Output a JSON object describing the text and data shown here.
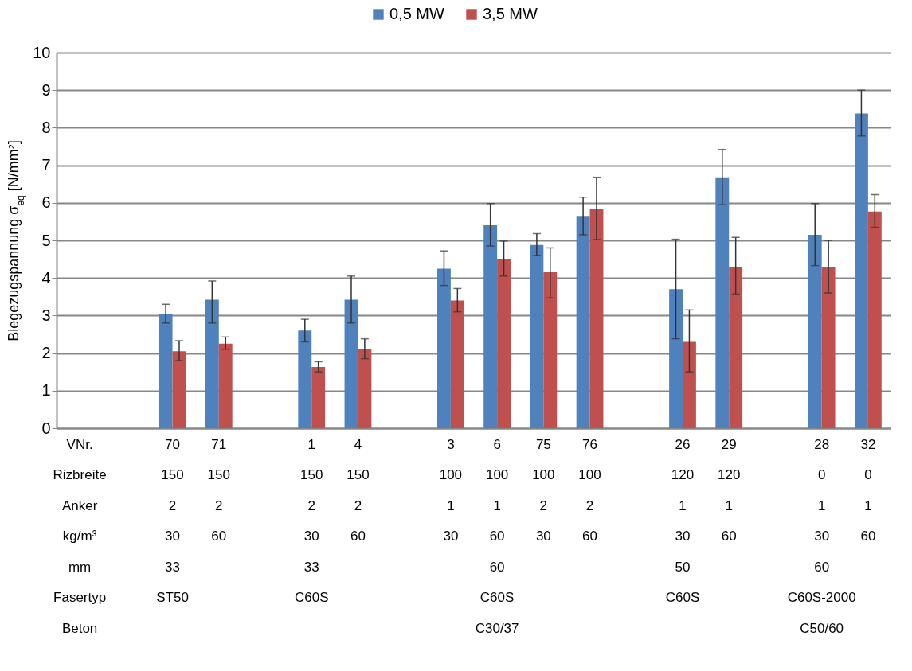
{
  "chart_data": {
    "type": "bar",
    "ylabel": "Biegezugspannung σ$_{eq}$ [N/mm²]",
    "categories": [
      "VNr.\nRizbreite\nAnker\nkg/m³\nmm\nFasertyp\nBeton",
      null,
      "70\n150\n2\n30\n33\nST50",
      "71\n150\n2\n60",
      null,
      "1\n150\n2\n30\n33\nC60S",
      "4\n150\n2\n60",
      null,
      "3\n100\n1\n30",
      "6\n100\n1\n60\n60\nC60S\nC30/37",
      "75\n100\n2\n30",
      "76\n100\n2\n60",
      null,
      "26\n120\n1\n30\n50\nC60S",
      "29\n120\n1\n60",
      null,
      "28\n0\n1\n30\n60\nC60S-2000\nC50/60",
      "32\n0\n1\n60"
    ],
    "series": [
      {
        "name": "0,5 MW",
        "color": "#4f81bd",
        "values": [
          null,
          null,
          3.05,
          3.42,
          null,
          2.6,
          3.42,
          null,
          4.25,
          5.4,
          4.88,
          5.65,
          null,
          3.7,
          6.68,
          null,
          5.15,
          8.38
        ],
        "errors": [
          null,
          null,
          [
            2.8,
            3.3
          ],
          [
            2.8,
            3.92
          ],
          null,
          [
            2.3,
            2.9
          ],
          [
            2.8,
            4.05
          ],
          null,
          [
            3.8,
            4.72
          ],
          [
            4.85,
            5.98
          ],
          [
            4.6,
            5.18
          ],
          [
            5.15,
            6.15
          ],
          null,
          [
            2.38,
            5.03
          ],
          [
            5.95,
            7.42
          ],
          null,
          [
            4.33,
            5.98
          ],
          [
            7.78,
            9.0
          ]
        ]
      },
      {
        "name": "3,5 MW",
        "color": "#c0504d",
        "values": [
          null,
          null,
          2.05,
          2.25,
          null,
          1.63,
          2.1,
          null,
          3.4,
          4.5,
          4.15,
          5.85,
          null,
          2.3,
          4.3,
          null,
          4.3,
          5.77
        ],
        "errors": [
          null,
          null,
          [
            1.8,
            2.33
          ],
          [
            2.1,
            2.43
          ],
          null,
          [
            1.5,
            1.77
          ],
          [
            1.85,
            2.38
          ],
          null,
          [
            3.1,
            3.72
          ],
          [
            4.05,
            4.98
          ],
          [
            3.47,
            4.8
          ],
          [
            5.02,
            6.68
          ],
          null,
          [
            1.5,
            3.15
          ],
          [
            3.57,
            5.08
          ],
          null,
          [
            3.6,
            5.0
          ],
          [
            5.35,
            6.22
          ]
        ]
      }
    ],
    "ylim": [
      0,
      10
    ],
    "yticks": [
      0,
      1,
      2,
      3,
      4,
      5,
      6,
      7,
      8,
      9,
      10
    ],
    "grid": "y",
    "legend": "top"
  }
}
